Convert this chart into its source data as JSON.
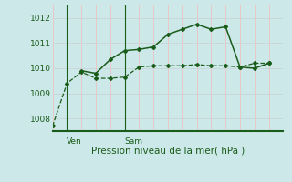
{
  "title": "Pression niveau de la mer( hPa )",
  "bg_color": "#cce8e8",
  "grid_color_h": "#c8d8d8",
  "grid_color_v": "#e8c8c8",
  "line_color": "#1a5c1a",
  "axis_color": "#1a5c1a",
  "ylim": [
    1007.5,
    1012.5
  ],
  "yticks": [
    1008,
    1009,
    1010,
    1011,
    1012
  ],
  "xlim": [
    0,
    16
  ],
  "x_ven": 1,
  "x_sam": 5,
  "xtick_positions": [
    1,
    5
  ],
  "xtick_labels": [
    "Ven",
    "Sam"
  ],
  "series1_x": [
    0,
    1,
    2,
    3,
    4,
    5,
    6,
    7,
    8,
    9,
    10,
    11,
    12,
    13,
    14,
    15
  ],
  "series1_y": [
    1007.7,
    1009.4,
    1009.85,
    1009.6,
    1009.6,
    1009.65,
    1010.05,
    1010.1,
    1010.1,
    1010.1,
    1010.15,
    1010.1,
    1010.1,
    1010.05,
    1010.2,
    1010.2
  ],
  "series2_x": [
    2,
    3,
    4,
    5,
    6,
    7,
    8,
    9,
    10,
    11,
    12,
    13,
    14,
    15
  ],
  "series2_y": [
    1009.9,
    1009.8,
    1010.35,
    1010.7,
    1010.75,
    1010.85,
    1011.35,
    1011.55,
    1011.75,
    1011.55,
    1011.65,
    1010.05,
    1010.0,
    1010.2
  ]
}
